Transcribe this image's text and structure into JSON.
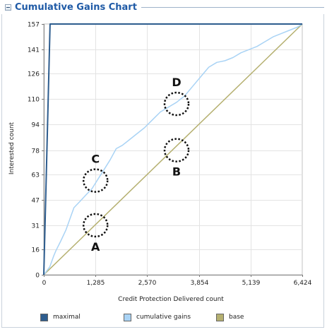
{
  "panel": {
    "title": "Cumulative Gains Chart",
    "collapse_icon": "collapse-minus-icon"
  },
  "chart_data": {
    "type": "line",
    "xlabel": "Credit Protection Delivered count",
    "ylabel": "Interested count",
    "x_ticks": [
      0,
      1285,
      2570,
      3854,
      5139,
      6424
    ],
    "x_tick_labels": [
      "0",
      "1,285",
      "2,570",
      "3,854",
      "5,139",
      "6,424"
    ],
    "y_ticks": [
      0,
      16,
      31,
      47,
      63,
      78,
      94,
      110,
      126,
      141,
      157
    ],
    "xlim": [
      0,
      6424
    ],
    "ylim": [
      0,
      157
    ],
    "grid": true,
    "legend_position": "bottom",
    "series": [
      {
        "name": "maximal",
        "color": "#2d5c8e",
        "x": [
          0,
          157,
          6424
        ],
        "y": [
          0,
          157,
          157
        ]
      },
      {
        "name": "cumulative gains",
        "color": "#a9d3f5",
        "x": [
          0,
          150,
          250,
          300,
          420,
          550,
          650,
          750,
          900,
          1050,
          1200,
          1350,
          1500,
          1650,
          1800,
          1950,
          2100,
          2300,
          2500,
          2700,
          2900,
          3100,
          3300,
          3500,
          3700,
          3900,
          4100,
          4300,
          4500,
          4700,
          4900,
          5100,
          5300,
          5500,
          5700,
          5900,
          6100,
          6300,
          6424
        ],
        "y": [
          0,
          5,
          12,
          15,
          21,
          28,
          35,
          42,
          46,
          50,
          54,
          60,
          66,
          72,
          79,
          81,
          84,
          88,
          92,
          97,
          102,
          105,
          108,
          112,
          118,
          124,
          130,
          133,
          134,
          136,
          139,
          141,
          143,
          146,
          149,
          151,
          153,
          155,
          157
        ]
      },
      {
        "name": "base",
        "color": "#b5b070",
        "x": [
          0,
          6424
        ],
        "y": [
          0,
          157
        ]
      }
    ],
    "annotations": [
      {
        "label": "A",
        "x": 1285,
        "y": 31,
        "label_pos": "below"
      },
      {
        "label": "B",
        "x": 3300,
        "y": 78,
        "label_pos": "below"
      },
      {
        "label": "C",
        "x": 1285,
        "y": 59,
        "label_pos": "above"
      },
      {
        "label": "D",
        "x": 3300,
        "y": 107,
        "label_pos": "above"
      }
    ]
  }
}
